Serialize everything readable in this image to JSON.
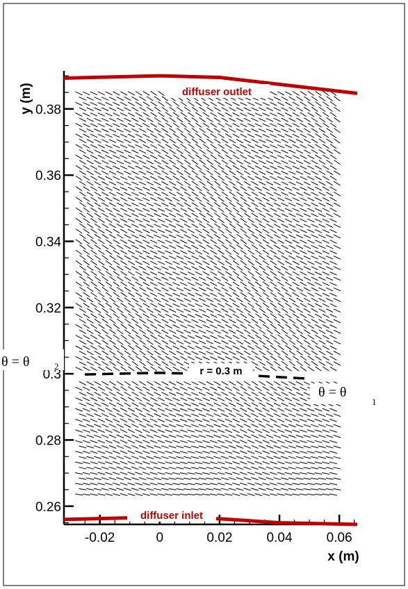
{
  "chart_data": {
    "type": "vector",
    "title": "",
    "xlabel": "x (m)",
    "ylabel": "y (m)",
    "xlim": [
      -0.032,
      0.066
    ],
    "ylim": [
      0.2545,
      0.3915
    ],
    "x_ticks": [
      -0.02,
      0,
      0.02,
      0.04,
      0.06
    ],
    "x_tick_labels": [
      "-0.02",
      "0",
      "0.02",
      "0.04",
      "0.06"
    ],
    "y_ticks": [
      0.26,
      0.28,
      0.3,
      0.32,
      0.34,
      0.36,
      0.38
    ],
    "y_tick_labels": [
      "0.26",
      "0.28",
      "0.3",
      "0.32",
      "0.34",
      "0.36",
      "0.38"
    ],
    "grid": false,
    "boundaries": [
      {
        "name": "diffuser outlet",
        "color": "#c00000",
        "points": [
          [
            -0.032,
            0.3893
          ],
          [
            0,
            0.39
          ],
          [
            0.02,
            0.3895
          ],
          [
            0.066,
            0.3847
          ]
        ]
      },
      {
        "name": "diffuser inlet",
        "color": "#c00000",
        "points": [
          [
            -0.032,
            0.256
          ],
          [
            0,
            0.2567
          ],
          [
            0.02,
            0.2562
          ],
          [
            0.04,
            0.255
          ],
          [
            0.066,
            0.2545
          ]
        ]
      }
    ],
    "radius_line": {
      "label": "r = 0.3 m",
      "points": [
        [
          -0.025,
          0.2998
        ],
        [
          0,
          0.3003
        ],
        [
          0.03,
          0.2995
        ],
        [
          0.05,
          0.2985
        ]
      ]
    },
    "annotations": [
      {
        "text": "θ = θ",
        "subscript": "2"
      },
      {
        "text": "θ = θ",
        "subscript": "1"
      }
    ],
    "vector_field": {
      "x_range": [
        -0.027,
        0.06
      ],
      "y_range_bottom": [
        0.2635,
        0.2985
      ],
      "y_range_top": [
        0.3015,
        0.386
      ],
      "dx": 0.0025,
      "dy": 0.0016
    }
  }
}
